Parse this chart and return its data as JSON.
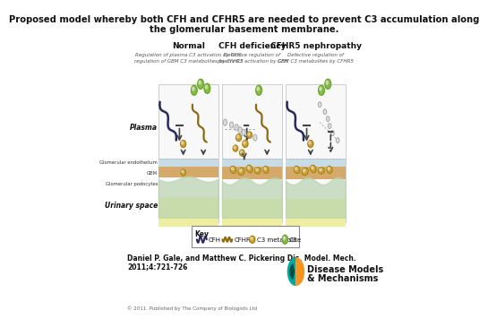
{
  "title_line1": "Proposed model whereby both CFH and CFHR5 are needed to prevent C3 accumulation along",
  "title_line2": "the glomerular basement membrane.",
  "author_line1": "Daniel P. Gale, and Matthew C. Pickering Dis. Model. Mech.",
  "author_line2": "2011;4:721-726",
  "copyright": "© 2011. Published by The Company of Biologists Ltd",
  "bg_color": "#ffffff",
  "panel_headers": [
    "Normal",
    "CFH deficiency",
    "CFHR5 nephropathy"
  ],
  "sub1a": "Regulation of plasma C3 activation by CFH;",
  "sub1b": "regulation of GBM C3 metabolites by CFHR5",
  "sub2a": "Defective regulation of",
  "sub2b": "plasma C3 activation by CFH",
  "sub3a": "Defective regulation of",
  "sub3b": "GBM C3 metabolites by CFHR5",
  "plasma_label": "Plasma",
  "gbm_label": "GBM",
  "glom_endo_label": "Glomerular endothelium",
  "glom_podo_label": "Glomerular podocytes",
  "urinary_label": "Urinary space",
  "key_label": "Key",
  "key_items": [
    "CFH",
    "CFHR5",
    "C3 metabolite",
    "C3"
  ],
  "endo_color": "#c8dce8",
  "gbm_color": "#d4a96a",
  "podo_color": "#b8d4b0",
  "urinary_color": "#eeeea0",
  "c3_color": "#88bb44",
  "c3met_color": "#c8a030",
  "cfh_color": "#2a2a5a",
  "cfhr5_color": "#8b6a14",
  "arrow_color": "#444444",
  "logo_teal": "#00a99d",
  "logo_orange": "#f7941d",
  "logo_dark": "#004d47"
}
